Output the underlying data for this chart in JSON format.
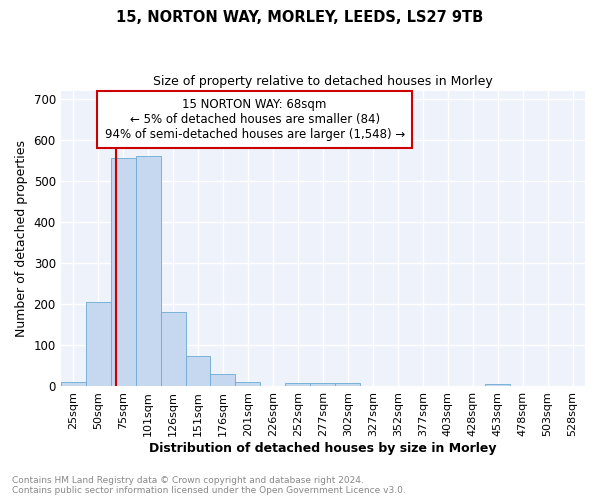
{
  "title1": "15, NORTON WAY, MORLEY, LEEDS, LS27 9TB",
  "title2": "Size of property relative to detached houses in Morley",
  "xlabel": "Distribution of detached houses by size in Morley",
  "ylabel": "Number of detached properties",
  "categories": [
    "25sqm",
    "50sqm",
    "75sqm",
    "101sqm",
    "126sqm",
    "151sqm",
    "176sqm",
    "201sqm",
    "226sqm",
    "252sqm",
    "277sqm",
    "302sqm",
    "327sqm",
    "352sqm",
    "377sqm",
    "403sqm",
    "428sqm",
    "453sqm",
    "478sqm",
    "503sqm",
    "528sqm"
  ],
  "values": [
    10,
    205,
    555,
    560,
    180,
    75,
    30,
    12,
    0,
    8,
    8,
    8,
    0,
    0,
    0,
    0,
    0,
    7,
    0,
    0,
    0
  ],
  "bar_color": "#c5d8f0",
  "bar_edge_color": "#6aaad4",
  "annotation_text": "15 NORTON WAY: 68sqm\n← 5% of detached houses are smaller (84)\n94% of semi-detached houses are larger (1,548) →",
  "annotation_box_color": "#ffffff",
  "annotation_box_edge": "#cc0000",
  "vline_color": "#cc0000",
  "vline_x": 1.72,
  "bg_color": "#eef2fb",
  "grid_color": "#ffffff",
  "footer_text": "Contains HM Land Registry data © Crown copyright and database right 2024.\nContains public sector information licensed under the Open Government Licence v3.0.",
  "ylim": [
    0,
    720
  ],
  "yticks": [
    0,
    100,
    200,
    300,
    400,
    500,
    600,
    700
  ]
}
